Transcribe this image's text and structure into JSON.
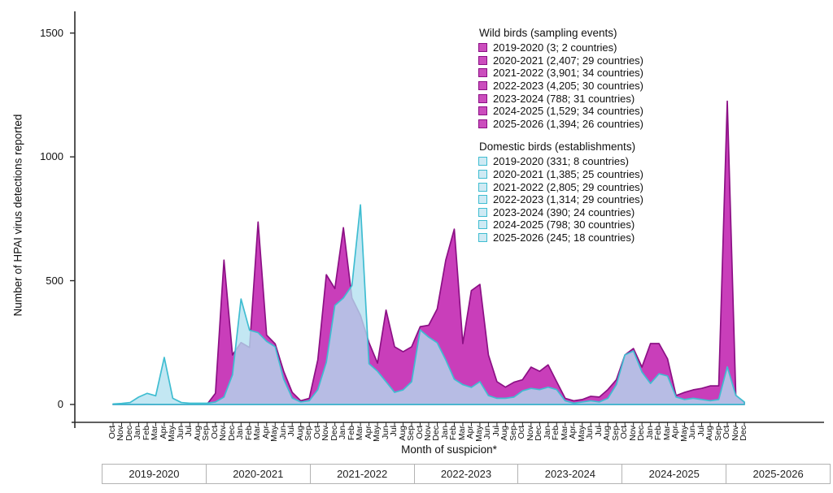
{
  "y_axis": {
    "title": "Number of HPAI virus detections reported",
    "ticks": [
      0,
      500,
      1000,
      1500
    ]
  },
  "x_axis": {
    "title": "Month of suspicion*",
    "months": [
      "Oct",
      "Nov",
      "Dec",
      "Jan",
      "Feb",
      "Mar",
      "Apr",
      "May",
      "Jun",
      "Jul",
      "Aug",
      "Sep",
      "Oct",
      "Nov",
      "Dec",
      "Jan",
      "Feb",
      "Mar",
      "Apr",
      "May",
      "Jun",
      "Jul",
      "Aug",
      "Sep",
      "Oct",
      "Nov",
      "Dec",
      "Jan",
      "Feb",
      "Mar",
      "Apr",
      "May",
      "Jun",
      "Jul",
      "Aug",
      "Sep",
      "Oct",
      "Nov",
      "Dec",
      "Jan",
      "Feb",
      "Mar",
      "Apr",
      "May",
      "Jun",
      "Jul",
      "Aug",
      "Sep",
      "Oct",
      "Nov",
      "Dec",
      "Jan",
      "Feb",
      "Mar",
      "Apr",
      "May",
      "Jun",
      "Jul",
      "Aug",
      "Sep",
      "Oct",
      "Nov",
      "Dec",
      "Jan",
      "Feb",
      "Mar",
      "Apr",
      "May",
      "Jun",
      "Jul",
      "Aug",
      "Sep",
      "Oct",
      "Nov",
      "Dec"
    ]
  },
  "seasons": [
    "2019-2020",
    "2020-2021",
    "2021-2022",
    "2022-2023",
    "2023-2024",
    "2024-2025",
    "2025-2026"
  ],
  "legend": {
    "wild_title": "Wild birds (sampling events)",
    "wild_items": [
      "2019-2020 (3; 2 countries)",
      "2020-2021 (2,407; 29 countries)",
      "2021-2022 (3,901; 34 countries)",
      "2022-2023 (4,205; 30 countries)",
      "2023-2024 (788; 31 countries)",
      "2024-2025 (1,529; 34 countries)",
      "2025-2026 (1,394; 26 countries)"
    ],
    "domestic_title": "Domestic birds (establishments)",
    "domestic_items": [
      "2019-2020 (331; 8 countries)",
      "2020-2021 (1,385; 25 countries)",
      "2021-2022 (2,805; 29 countries)",
      "2022-2023 (1,314; 29 countries)",
      "2023-2024 (390; 24 countries)",
      "2024-2025 (798; 30 countries)",
      "2025-2026 (245; 18 countries)"
    ]
  },
  "chart_data": {
    "type": "area",
    "title": "",
    "xlabel": "Month of suspicion*",
    "ylabel": "Number of HPAI virus detections reported",
    "x_start": "Oct 2019",
    "x_end": "Dec 2025",
    "ylim": [
      0,
      1550
    ],
    "y_ticks": [
      0,
      500,
      1000,
      1500
    ],
    "grid": false,
    "legend_position": "top-right",
    "x": [
      "Oct",
      "Nov",
      "Dec",
      "Jan",
      "Feb",
      "Mar",
      "Apr",
      "May",
      "Jun",
      "Jul",
      "Aug",
      "Sep",
      "Oct",
      "Nov",
      "Dec",
      "Jan",
      "Feb",
      "Mar",
      "Apr",
      "May",
      "Jun",
      "Jul",
      "Aug",
      "Sep",
      "Oct",
      "Nov",
      "Dec",
      "Jan",
      "Feb",
      "Mar",
      "Apr",
      "May",
      "Jun",
      "Jul",
      "Aug",
      "Sep",
      "Oct",
      "Nov",
      "Dec",
      "Jan",
      "Feb",
      "Mar",
      "Apr",
      "May",
      "Jun",
      "Jul",
      "Aug",
      "Sep",
      "Oct",
      "Nov",
      "Dec",
      "Jan",
      "Feb",
      "Mar",
      "Apr",
      "May",
      "Jun",
      "Jul",
      "Aug",
      "Sep",
      "Oct",
      "Nov",
      "Dec",
      "Jan",
      "Feb",
      "Mar",
      "Apr",
      "May",
      "Jun",
      "Jul",
      "Aug",
      "Sep",
      "Oct",
      "Nov",
      "Dec"
    ],
    "series": [
      {
        "name": "Wild birds (sampling events)",
        "fill": "#c93eba",
        "stroke": "#8c1085",
        "values": [
          0,
          0,
          1,
          1,
          1,
          0,
          0,
          0,
          0,
          0,
          0,
          0,
          45,
          583,
          200,
          250,
          230,
          737,
          280,
          245,
          134,
          49,
          15,
          25,
          180,
          524,
          468,
          714,
          430,
          360,
          250,
          167,
          381,
          233,
          213,
          233,
          314,
          320,
          386,
          583,
          708,
          246,
          460,
          485,
          200,
          92,
          70,
          90,
          100,
          151,
          134,
          160,
          92,
          25,
          15,
          20,
          33,
          30,
          60,
          100,
          200,
          226,
          151,
          246,
          246,
          184,
          36,
          49,
          59,
          65,
          75,
          75,
          1225,
          37,
          8
        ]
      },
      {
        "name": "Domestic birds (establishments)",
        "fill": "rgba(178,224,240,0.78)",
        "stroke": "#3fbdd1",
        "values": [
          2,
          4,
          8,
          30,
          45,
          35,
          190,
          25,
          8,
          5,
          5,
          5,
          10,
          30,
          120,
          426,
          300,
          290,
          255,
          233,
          102,
          26,
          10,
          15,
          60,
          170,
          400,
          430,
          480,
          806,
          165,
          134,
          92,
          49,
          59,
          92,
          301,
          272,
          249,
          180,
          102,
          80,
          69,
          92,
          36,
          25,
          25,
          30,
          55,
          65,
          60,
          70,
          60,
          15,
          5,
          10,
          15,
          10,
          25,
          80,
          200,
          216,
          131,
          85,
          124,
          115,
          30,
          20,
          25,
          20,
          15,
          20,
          152,
          37,
          10
        ]
      }
    ]
  }
}
